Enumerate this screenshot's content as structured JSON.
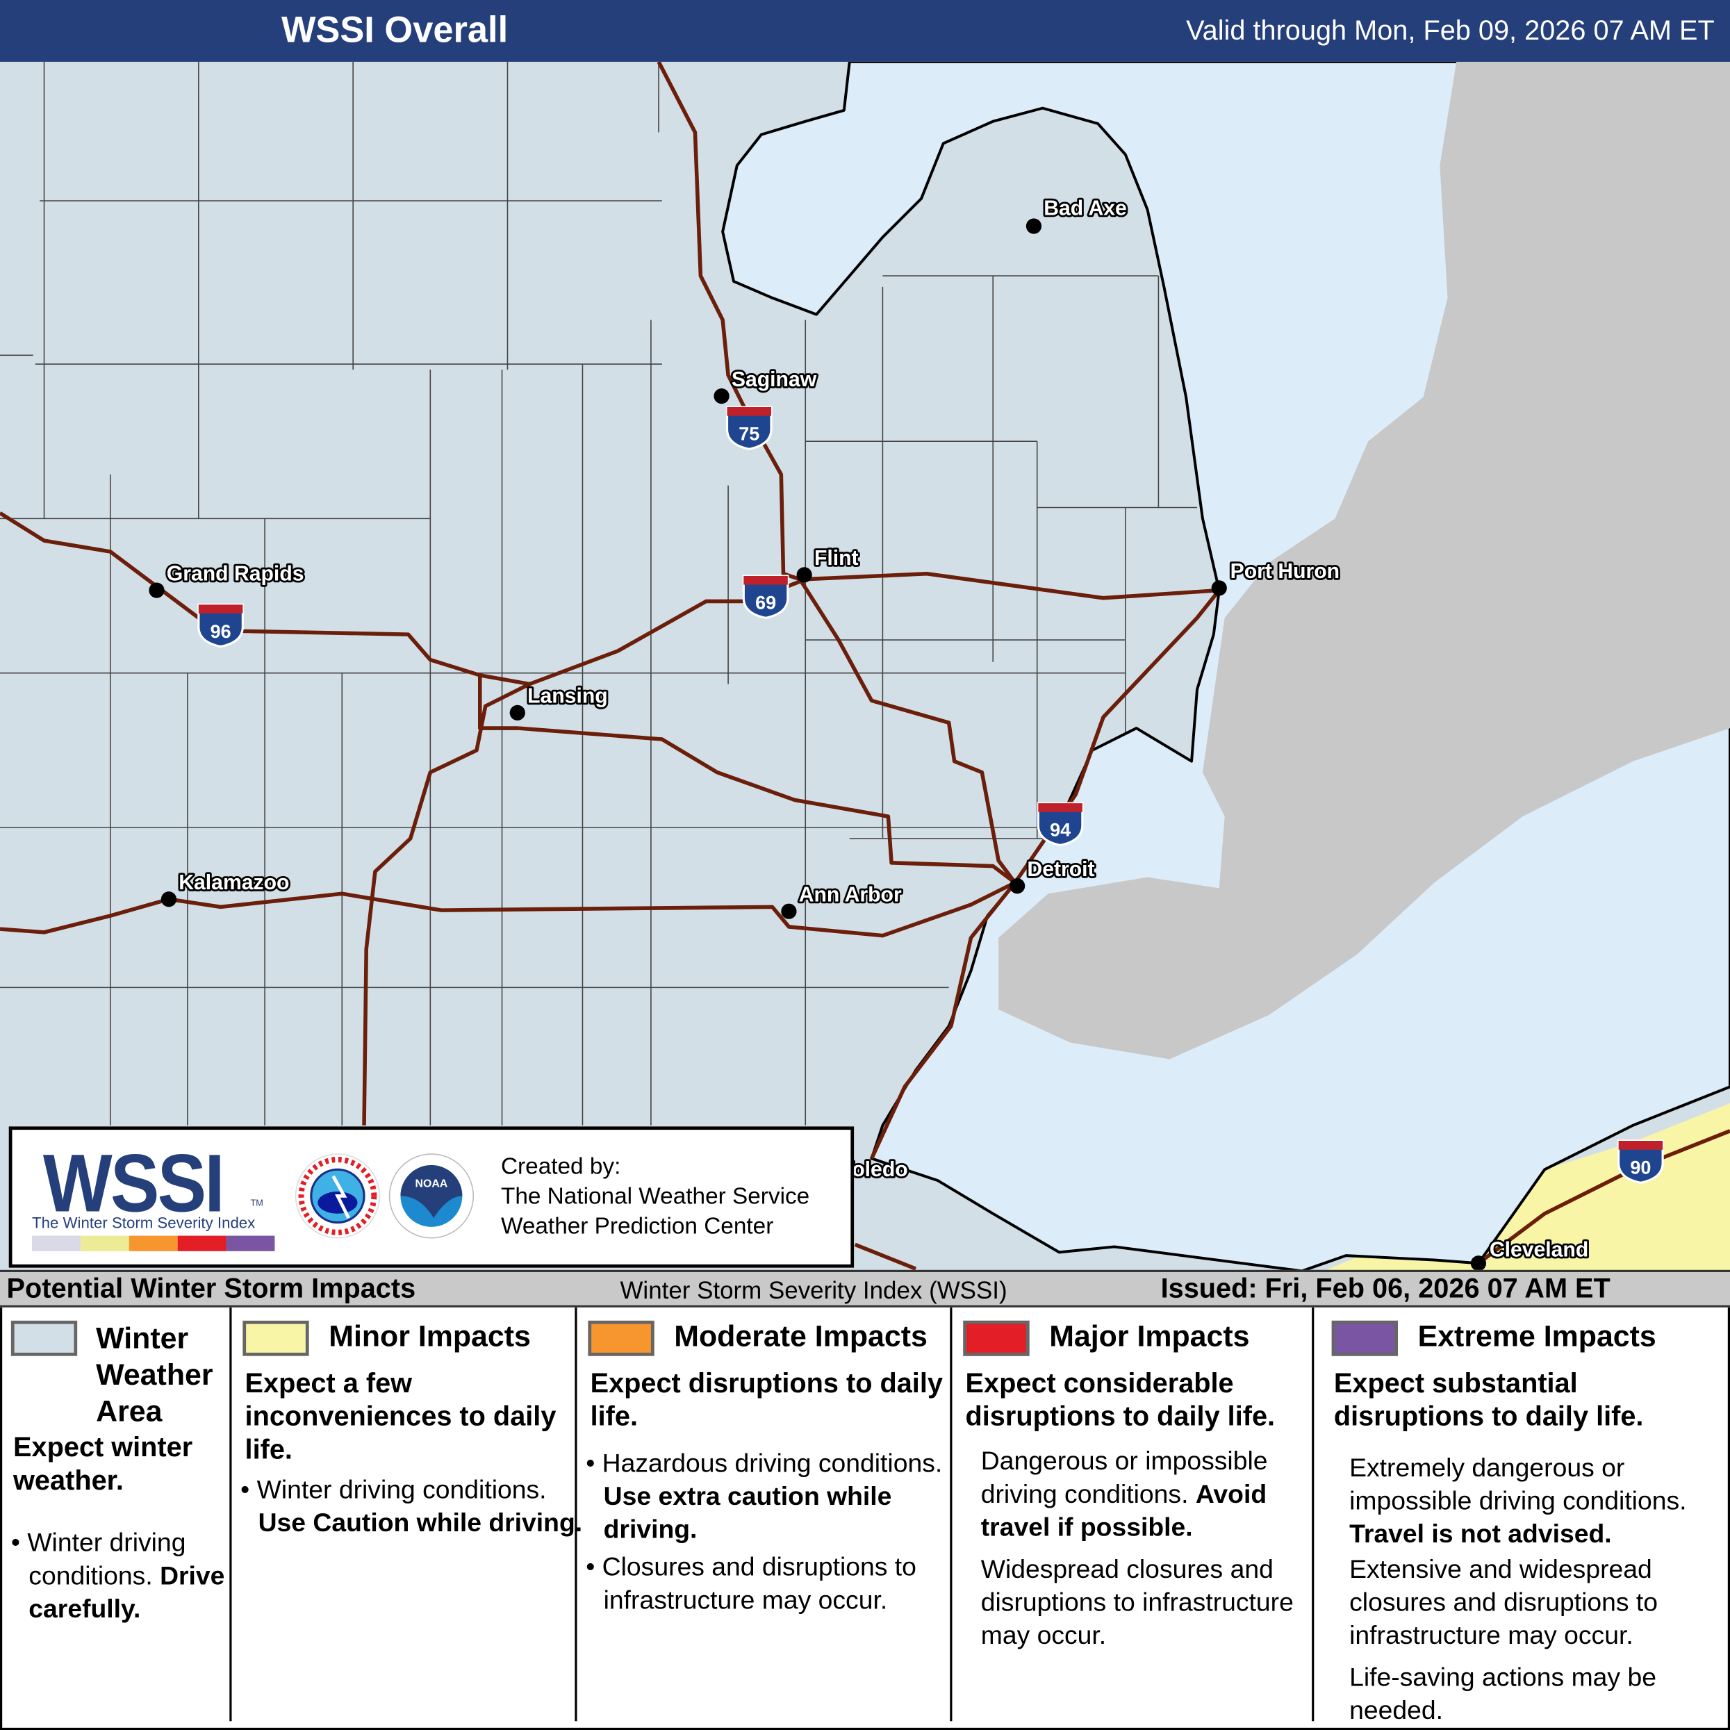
{
  "header": {
    "title": "WSSI Overall",
    "valid": "Valid through Mon, Feb 09, 2026 07 AM ET"
  },
  "colors": {
    "header": "#243f7a",
    "land": "#d3dfe6",
    "water": "#dcedf9",
    "ontario": "#c8c8c8",
    "road": "#6b1e0a",
    "minor": "#f8f5a6",
    "winter_area": "#d3dfe6",
    "moderate": "#f7962f",
    "major": "#e31e26",
    "extreme": "#7a55a3"
  },
  "cities": [
    "Bad Axe",
    "Saginaw",
    "Flint",
    "Grand Rapids",
    "Lansing",
    "Port Huron",
    "Kalamazoo",
    "Ann Arbor",
    "Detroit",
    "Toledo",
    "Cleveland"
  ],
  "interstates": [
    "75",
    "69",
    "96",
    "94",
    "90"
  ],
  "logo": {
    "wssi": "WSSI",
    "tm": "TM",
    "subtitle": "The Winter Storm Severity Index",
    "created_by": "Created by:",
    "org1": "The National Weather Service",
    "org2": "Weather Prediction Center",
    "nws_seal_text": "NATIONAL WEATHER SERVICE",
    "noaa_seal_text": "NOAA"
  },
  "strip": {
    "left": "Potential Winter Storm Impacts",
    "center": "Winter Storm Severity Index (WSSI)",
    "right": "Issued: Fri, Feb 06, 2026 07 AM ET"
  },
  "legend": [
    {
      "title": "Winter Weather Area",
      "title1": "Winter",
      "title2": "Weather",
      "title3": "Area",
      "head": "Expect winter weather.",
      "b1": "Winter driving conditions.",
      "b1b": "Drive carefully."
    },
    {
      "title": "Minor Impacts",
      "head": "Expect a few inconveniences to daily life.",
      "b1": "Winter driving conditions.",
      "b1b": "Use Caution while driving."
    },
    {
      "title": "Moderate Impacts",
      "head": "Expect disruptions to daily life.",
      "b1": "Hazardous driving conditions.",
      "b1b": "Use extra caution while driving.",
      "b2": "Closures and disruptions to infrastructure may occur."
    },
    {
      "title": "Major Impacts",
      "head": "Expect considerable disruptions to daily life.",
      "p1": "Dangerous or impossible driving conditions.",
      "p1b": "Avoid travel if possible.",
      "p2": "Widespread closures and disruptions to infrastructure may occur."
    },
    {
      "title": "Extreme Impacts",
      "head": "Expect substantial disruptions to daily life.",
      "p1": "Extremely dangerous or impossible driving conditions.",
      "p1b": "Travel is not advised.",
      "p2": "Extensive and widespread closures and disruptions to infrastructure may occur.",
      "p3": "Life-saving actions may be needed."
    }
  ]
}
